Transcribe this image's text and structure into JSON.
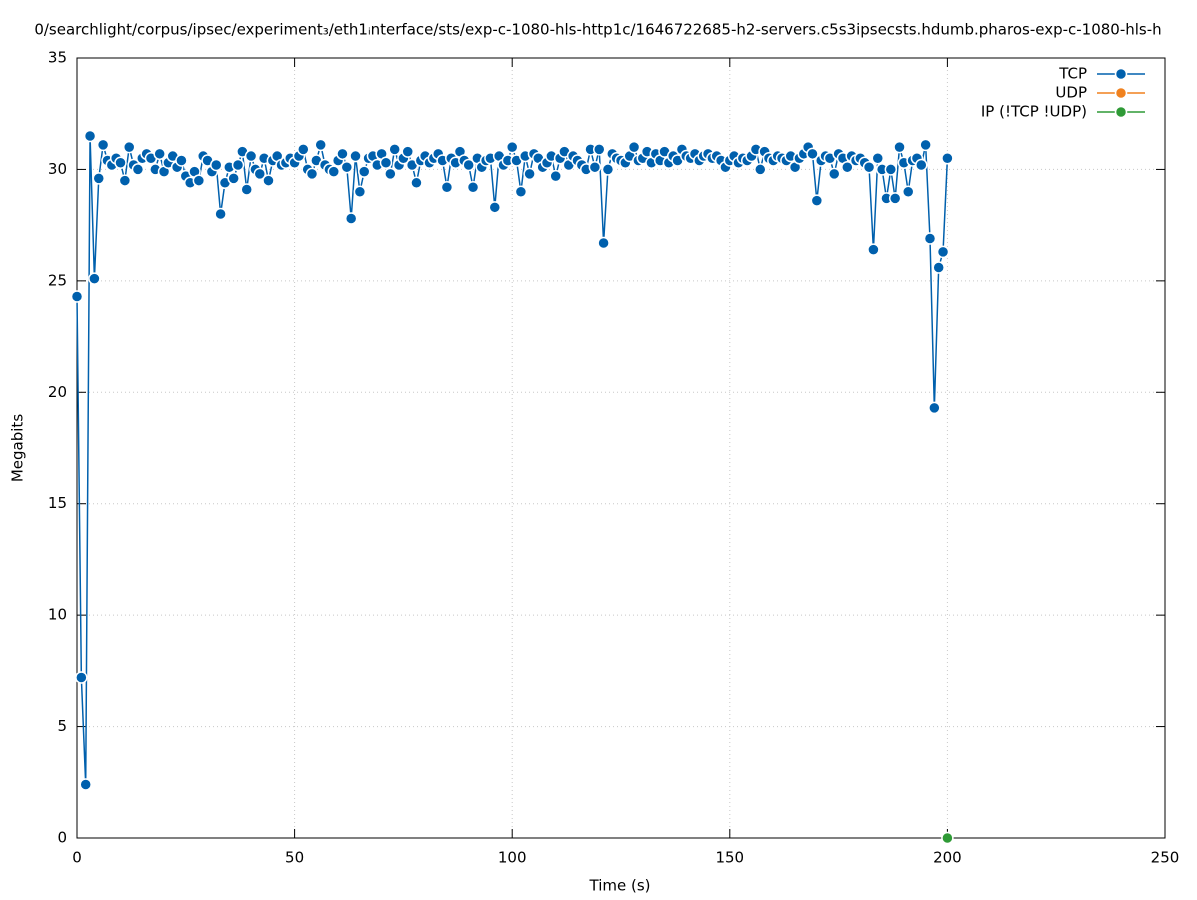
{
  "chart_data": {
    "type": "line",
    "title": "0/searchlight/corpus/ipsec/experiment₃/eth1ᵢnterface/sts/exp-c-1080-hls-http1c/1646722685-h2-servers.c5s3ipsecsts.hdumb.pharos-exp-c-1080-hls-h",
    "xlabel": "Time (s)",
    "ylabel": "Megabits",
    "xlim": [
      0,
      250
    ],
    "xticks": [
      0,
      50,
      100,
      150,
      200,
      250
    ],
    "ylim": [
      0,
      35
    ],
    "yticks": [
      0,
      5,
      10,
      15,
      20,
      25,
      30,
      35
    ],
    "grid": true,
    "legend": "top-right",
    "series": [
      {
        "name": "TCP",
        "color": "#0060ad",
        "x": [
          0,
          1,
          2,
          3,
          4,
          5,
          6,
          7,
          8,
          9,
          10,
          11,
          12,
          13,
          14,
          15,
          16,
          17,
          18,
          19,
          20,
          21,
          22,
          23,
          24,
          25,
          26,
          27,
          28,
          29,
          30,
          31,
          32,
          33,
          34,
          35,
          36,
          37,
          38,
          39,
          40,
          41,
          42,
          43,
          44,
          45,
          46,
          47,
          48,
          49,
          50,
          51,
          52,
          53,
          54,
          55,
          56,
          57,
          58,
          59,
          60,
          61,
          62,
          63,
          64,
          65,
          66,
          67,
          68,
          69,
          70,
          71,
          72,
          73,
          74,
          75,
          76,
          77,
          78,
          79,
          80,
          81,
          82,
          83,
          84,
          85,
          86,
          87,
          88,
          89,
          90,
          91,
          92,
          93,
          94,
          95,
          96,
          97,
          98,
          99,
          100,
          101,
          102,
          103,
          104,
          105,
          106,
          107,
          108,
          109,
          110,
          111,
          112,
          113,
          114,
          115,
          116,
          117,
          118,
          119,
          120,
          121,
          122,
          123,
          124,
          125,
          126,
          127,
          128,
          129,
          130,
          131,
          132,
          133,
          134,
          135,
          136,
          137,
          138,
          139,
          140,
          141,
          142,
          143,
          144,
          145,
          146,
          147,
          148,
          149,
          150,
          151,
          152,
          153,
          154,
          155,
          156,
          157,
          158,
          159,
          160,
          161,
          162,
          163,
          164,
          165,
          166,
          167,
          168,
          169,
          170,
          171,
          172,
          173,
          174,
          175,
          176,
          177,
          178,
          179,
          180,
          181,
          182,
          183,
          184,
          185,
          186,
          187,
          188,
          189,
          190,
          191,
          192,
          193,
          194,
          195,
          196,
          197,
          198,
          199,
          200
        ],
        "values": [
          24.3,
          7.2,
          2.4,
          31.5,
          25.1,
          29.6,
          31.1,
          30.4,
          30.2,
          30.5,
          30.3,
          29.5,
          31.0,
          30.2,
          30.0,
          30.5,
          30.7,
          30.5,
          30.0,
          30.7,
          29.9,
          30.3,
          30.6,
          30.1,
          30.4,
          29.7,
          29.4,
          29.9,
          29.5,
          30.6,
          30.4,
          29.9,
          30.2,
          28.0,
          29.4,
          30.1,
          29.6,
          30.2,
          30.8,
          29.1,
          30.6,
          30.0,
          29.8,
          30.5,
          29.5,
          30.4,
          30.6,
          30.2,
          30.3,
          30.5,
          30.3,
          30.6,
          30.9,
          30.0,
          29.8,
          30.4,
          31.1,
          30.2,
          30.0,
          29.9,
          30.4,
          30.7,
          30.1,
          27.8,
          30.6,
          29.0,
          29.9,
          30.5,
          30.6,
          30.2,
          30.7,
          30.3,
          29.8,
          30.9,
          30.2,
          30.5,
          30.8,
          30.2,
          29.4,
          30.4,
          30.6,
          30.3,
          30.5,
          30.7,
          30.4,
          29.2,
          30.5,
          30.3,
          30.8,
          30.4,
          30.2,
          29.2,
          30.5,
          30.1,
          30.4,
          30.5,
          28.3,
          30.6,
          30.2,
          30.4,
          31.0,
          30.4,
          29.0,
          30.6,
          29.8,
          30.7,
          30.5,
          30.1,
          30.3,
          30.6,
          29.7,
          30.5,
          30.8,
          30.2,
          30.6,
          30.4,
          30.2,
          30.0,
          30.9,
          30.1,
          30.9,
          26.7,
          30.0,
          30.7,
          30.5,
          30.4,
          30.3,
          30.6,
          31.0,
          30.4,
          30.5,
          30.8,
          30.3,
          30.7,
          30.4,
          30.8,
          30.3,
          30.6,
          30.4,
          30.9,
          30.6,
          30.5,
          30.7,
          30.4,
          30.6,
          30.7,
          30.5,
          30.6,
          30.4,
          30.1,
          30.4,
          30.6,
          30.3,
          30.5,
          30.4,
          30.6,
          30.9,
          30.0,
          30.8,
          30.5,
          30.4,
          30.6,
          30.5,
          30.4,
          30.6,
          30.1,
          30.5,
          30.7,
          31.0,
          30.7,
          28.6,
          30.4,
          30.6,
          30.5,
          29.8,
          30.7,
          30.5,
          30.1,
          30.6,
          30.4,
          30.5,
          30.3,
          30.1,
          26.4,
          30.5,
          30.0,
          28.7,
          30.0,
          28.7,
          31.0,
          30.3,
          29.0,
          30.4,
          30.5,
          30.2,
          31.1,
          26.9,
          19.3,
          25.6,
          26.3,
          30.5
        ]
      },
      {
        "name": "UDP",
        "color": "#f0811e",
        "x": [],
        "values": []
      },
      {
        "name": "IP (!TCP  !UDP)",
        "color": "#2f9a36",
        "x": [
          200
        ],
        "values": [
          0
        ]
      }
    ]
  }
}
